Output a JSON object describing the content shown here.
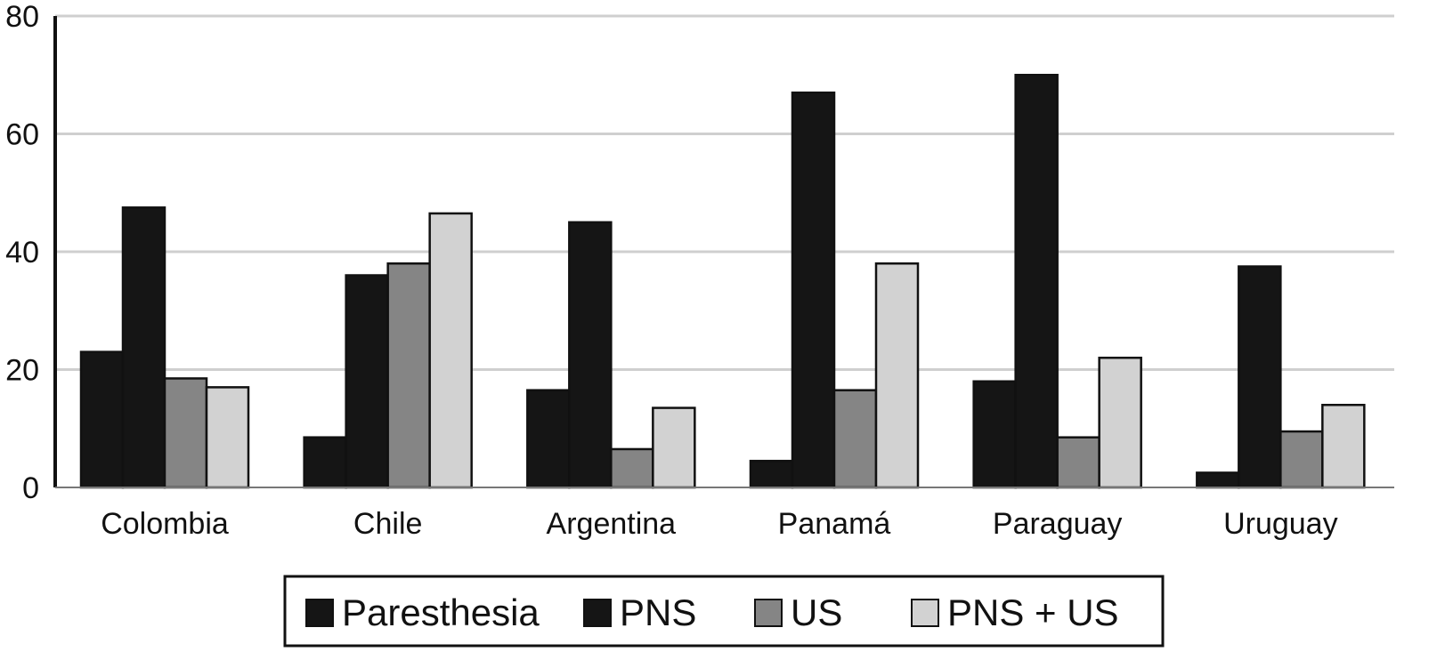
{
  "chart_data": {
    "type": "bar",
    "title": "",
    "xlabel": "",
    "ylabel": "",
    "ylim": [
      0,
      80
    ],
    "yticks": [
      0,
      20,
      40,
      60,
      80
    ],
    "grid": true,
    "legend_position": "bottom",
    "categories": [
      "Colombia",
      "Chile",
      "Argentina",
      "Panamá",
      "Paraguay",
      "Uruguay"
    ],
    "series": [
      {
        "name": "Paresthesia",
        "color": "#151515",
        "values": [
          23,
          8.5,
          16.5,
          4.5,
          18,
          2.5
        ]
      },
      {
        "name": "PNS",
        "color": "#151515",
        "values": [
          47.5,
          36,
          45,
          67,
          70,
          37.5
        ]
      },
      {
        "name": "US",
        "color": "#858585",
        "values": [
          18.5,
          38,
          6.5,
          16.5,
          8.5,
          9.5
        ]
      },
      {
        "name": "PNS + US",
        "color": "#d2d2d2",
        "values": [
          17,
          46.5,
          13.5,
          38,
          22,
          14
        ]
      }
    ]
  }
}
